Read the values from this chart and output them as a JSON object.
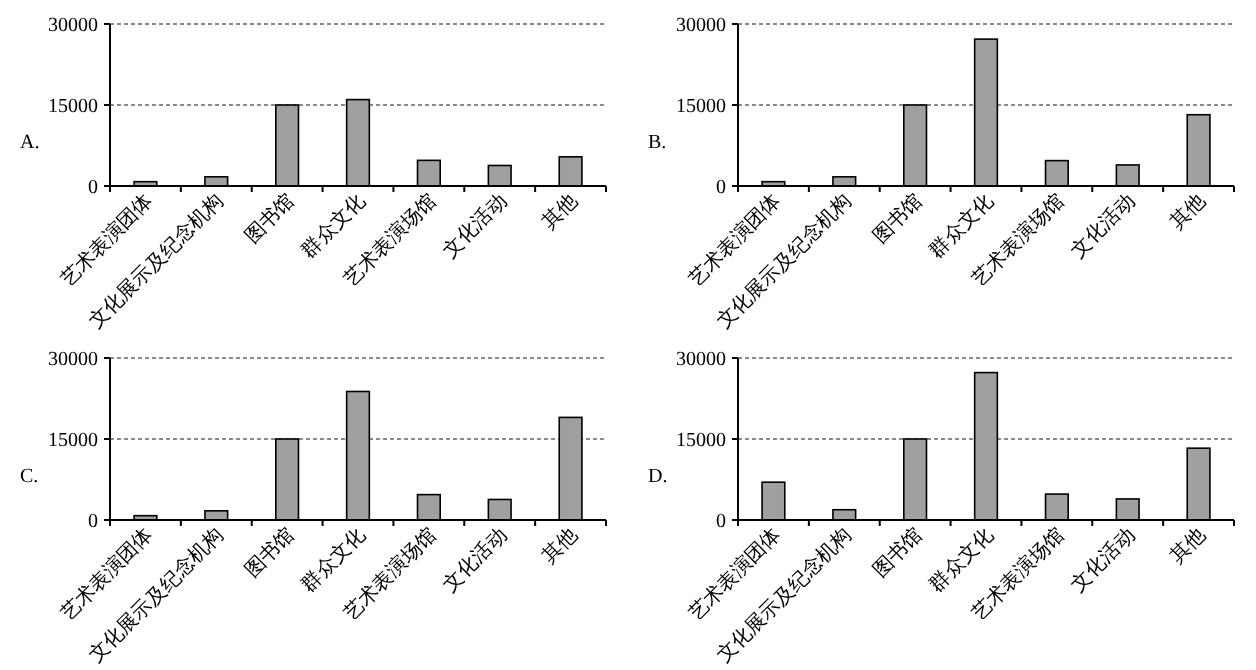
{
  "chart_data": [
    {
      "type": "bar",
      "annotations": [
        "A."
      ],
      "categories": [
        "艺术表演团体",
        "文化展示及纪念机构",
        "图书馆",
        "群众文化",
        "艺术表演场馆",
        "文化活动",
        "其他"
      ],
      "values": [
        800,
        1700,
        15000,
        16000,
        4750,
        3800,
        5400
      ],
      "color": "#a0a0a0",
      "ylim": [
        0,
        30000
      ],
      "yticks": [
        0,
        15000,
        30000
      ],
      "grid": "y"
    },
    {
      "type": "bar",
      "annotations": [
        "B."
      ],
      "categories": [
        "艺术表演团体",
        "文化展示及纪念机构",
        "图书馆",
        "群众文化",
        "艺术表演场馆",
        "文化活动",
        "其他"
      ],
      "values": [
        800,
        1700,
        15000,
        27200,
        4700,
        3900,
        13200
      ],
      "color": "#a0a0a0",
      "ylim": [
        0,
        30000
      ],
      "yticks": [
        0,
        15000,
        30000
      ],
      "grid": "y"
    },
    {
      "type": "bar",
      "annotations": [
        "C."
      ],
      "categories": [
        "艺术表演团体",
        "文化展示及纪念机构",
        "图书馆",
        "群众文化",
        "艺术表演场馆",
        "文化活动",
        "其他"
      ],
      "values": [
        800,
        1700,
        15000,
        23800,
        4700,
        3800,
        19000
      ],
      "color": "#a0a0a0",
      "ylim": [
        0,
        30000
      ],
      "yticks": [
        0,
        15000,
        30000
      ],
      "grid": "y"
    },
    {
      "type": "bar",
      "annotations": [
        "D."
      ],
      "categories": [
        "艺术表演团体",
        "文化展示及纪念机构",
        "图书馆",
        "群众文化",
        "艺术表演场馆",
        "文化活动",
        "其他"
      ],
      "values": [
        7000,
        1900,
        15000,
        27300,
        4800,
        3900,
        13300
      ],
      "color": "#a0a0a0",
      "ylim": [
        0,
        30000
      ],
      "yticks": [
        0,
        15000,
        30000
      ],
      "grid": "y"
    }
  ]
}
